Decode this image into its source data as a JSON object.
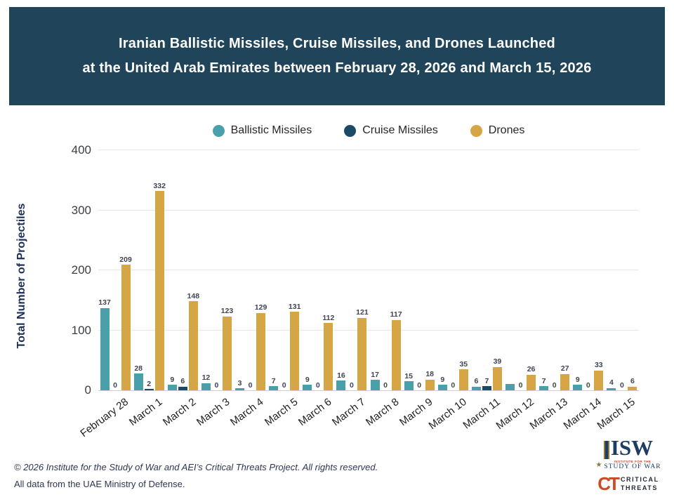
{
  "header": {
    "title_line1": "Iranian Ballistic Missiles, Cruise Missiles, and Drones Launched",
    "title_line2": "at the United Arab Emirates between February 28, 2026 and March 15, 2026",
    "bg_color": "#20455A"
  },
  "legend": [
    {
      "label": "Ballistic Missiles",
      "color": "#4AA0AA"
    },
    {
      "label": "Cruise Missiles",
      "color": "#1C4965"
    },
    {
      "label": "Drones",
      "color": "#D6A546"
    }
  ],
  "chart_data": {
    "type": "bar",
    "title": "Iranian Ballistic Missiles, Cruise Missiles, and Drones Launched at the United Arab Emirates between February 28, 2026 and March 15, 2026",
    "xlabel": "",
    "ylabel": "Total Number of Projectiles",
    "ylim": [
      0,
      400
    ],
    "yticks": [
      0,
      100,
      200,
      300,
      400
    ],
    "grid": "horizontal",
    "legend_position": "top",
    "categories": [
      "February 28",
      "March 1",
      "March 2",
      "March 3",
      "March 4",
      "March 5",
      "March 6",
      "March 7",
      "March 8",
      "March 9",
      "March 10",
      "March 11",
      "March 12",
      "March 13",
      "March 14",
      "March 15"
    ],
    "series": [
      {
        "name": "Ballistic Missiles",
        "color": "#4AA0AA",
        "values": [
          137,
          28,
          9,
          12,
          3,
          7,
          9,
          16,
          17,
          15,
          9,
          6,
          11,
          7,
          9,
          4
        ],
        "labels": [
          "137",
          "28",
          "9",
          "12",
          "3",
          "7",
          "9",
          "16",
          "17",
          "15",
          "9",
          "6",
          "",
          "7",
          "9",
          "4"
        ]
      },
      {
        "name": "Cruise Missiles",
        "color": "#1C4965",
        "values": [
          0,
          2,
          6,
          0,
          0,
          0,
          0,
          0,
          0,
          0,
          0,
          7,
          0,
          0,
          0,
          0
        ],
        "labels": [
          "0",
          "2",
          "6",
          "0",
          "0",
          "0",
          "0",
          "0",
          "0",
          "0",
          "0",
          "7",
          "0",
          "0",
          "0",
          "0"
        ]
      },
      {
        "name": "Drones",
        "color": "#D6A546",
        "values": [
          209,
          332,
          148,
          123,
          129,
          131,
          112,
          121,
          117,
          18,
          35,
          39,
          26,
          27,
          33,
          6
        ],
        "labels": [
          "209",
          "332",
          "148",
          "123",
          "129",
          "131",
          "112",
          "121",
          "117",
          "18",
          "35",
          "39",
          "26",
          "27",
          "33",
          "6"
        ]
      }
    ]
  },
  "footer": {
    "line1": "© 2026 Institute for the Study of War and AEI’s Critical Threats Project. All rights reserved.",
    "line2": "All data from the UAE Ministry of Defense."
  },
  "logos": {
    "isw": {
      "text": "ISW",
      "sub1": "INSTITUTE FOR THE",
      "sub2": "STUDY OF WAR",
      "star": "★"
    },
    "ct": {
      "text": "CT",
      "word1": "CRITICAL",
      "word2": "THREATS"
    }
  }
}
